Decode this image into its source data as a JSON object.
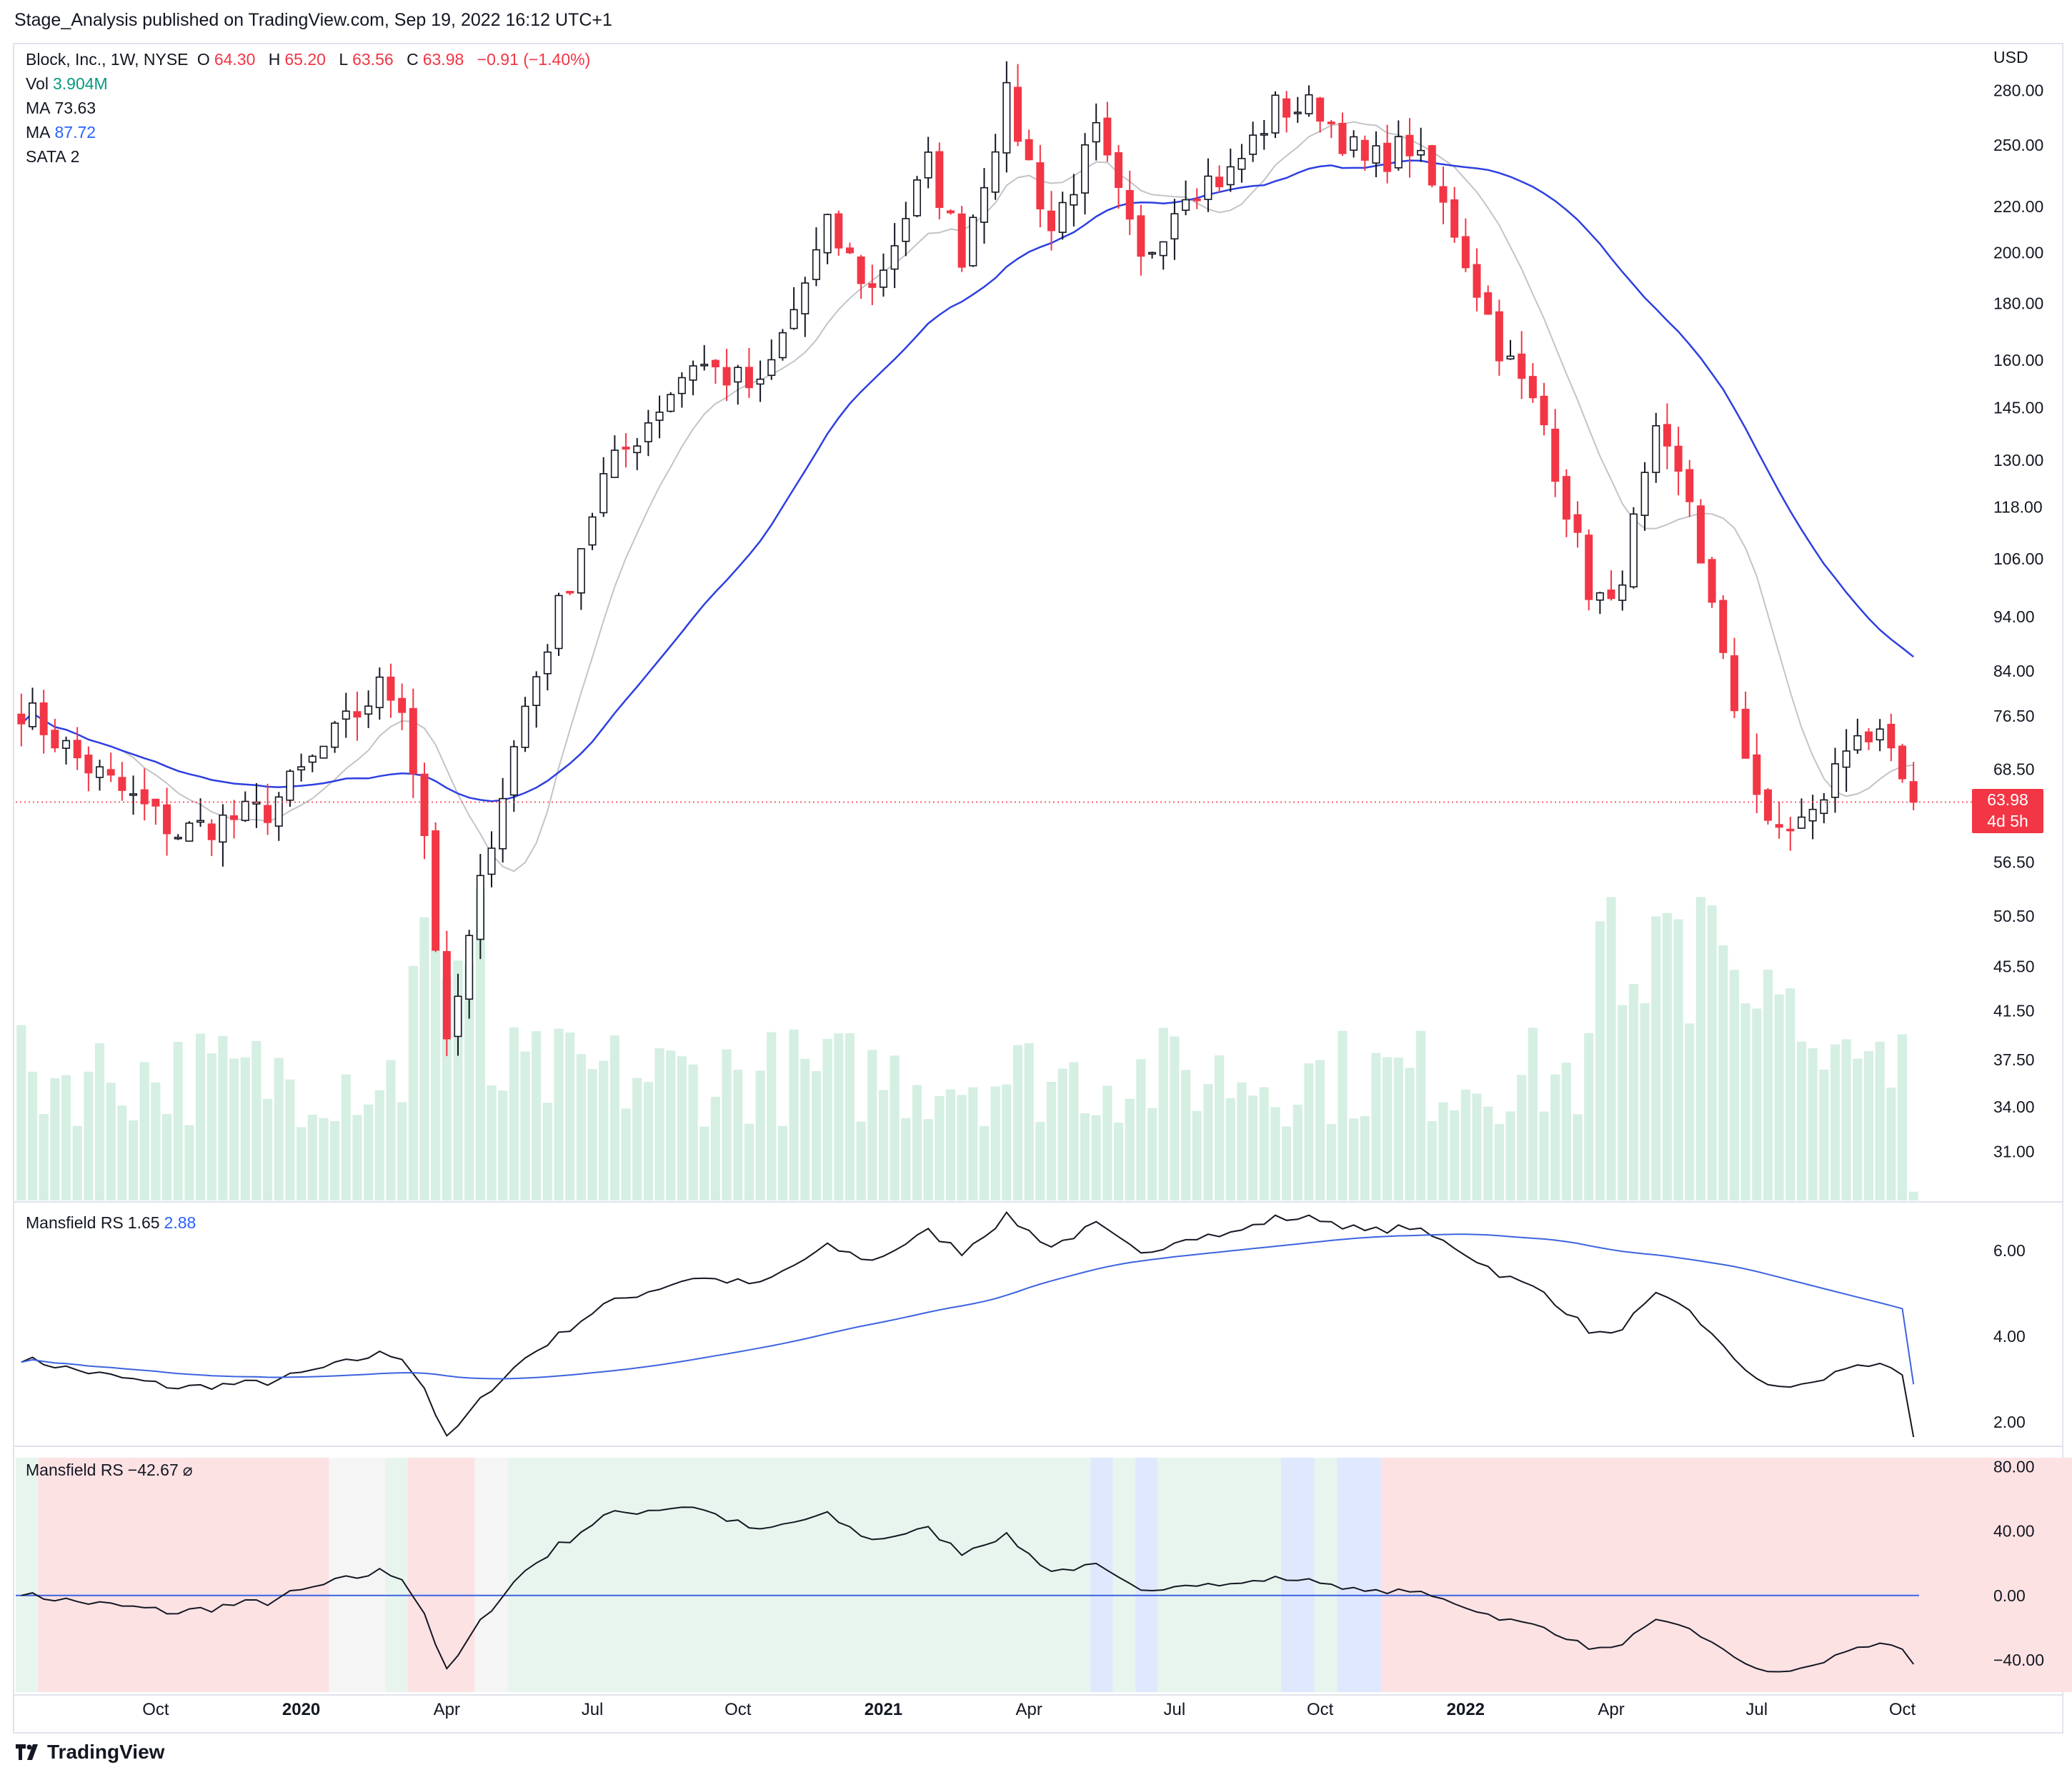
{
  "publisher": "Stage_Analysis published on TradingView.com, Sep 19, 2022 16:12 UTC+1",
  "footer_brand": "TradingView",
  "legend": {
    "symbol": "Block, Inc., 1W, NYSE",
    "o_label": "O",
    "o_value": "64.30",
    "h_label": "H",
    "h_value": "65.20",
    "l_label": "L",
    "l_value": "63.56",
    "c_label": "C",
    "c_value": "63.98",
    "change": "−0.91 (−1.40%)",
    "vol_label": "Vol",
    "vol_value": "3.904M",
    "ma1_label": "MA",
    "ma1_value": "73.63",
    "ma2_label": "MA",
    "ma2_value": "87.72",
    "sata_label": "SATA",
    "sata_value": "2"
  },
  "rs1_legend": {
    "label": "Mansfield RS",
    "v1": "1.65",
    "v2": "2.88"
  },
  "rs2_legend": {
    "label": "Mansfield RS",
    "v1": "−42.67",
    "symbol": "⌀"
  },
  "price_badge": {
    "price": "63.98",
    "countdown": "4d 5h"
  },
  "colors": {
    "up": "#131722",
    "down": "#f23645",
    "volume": "#d5efe3",
    "ma_fast": "#c2c4c9",
    "ma_slow": "#2d3fe0",
    "rs_line": "#131722",
    "rs_ma": "#3c63e0"
  },
  "chart_data": [
    {
      "type": "candlestick",
      "title": "Block, Inc., 1W, NYSE",
      "currency": "USD",
      "scale": "log",
      "ylim": [
        28,
        300
      ],
      "y_ticks": [
        "280.00",
        "250.00",
        "220.00",
        "200.00",
        "180.00",
        "160.00",
        "145.00",
        "130.00",
        "118.00",
        "106.00",
        "94.00",
        "84.00",
        "76.50",
        "68.50",
        "56.50",
        "50.50",
        "45.50",
        "41.50",
        "37.50",
        "34.00",
        "31.00"
      ],
      "x_ticks": [
        "Oct",
        "2020",
        "Apr",
        "Jul",
        "Oct",
        "2021",
        "Apr",
        "Jul",
        "Oct",
        "2022",
        "Apr",
        "Jul",
        "Oct"
      ],
      "x_ticks_bold": [
        "2020",
        "2021",
        "2022"
      ],
      "period": "weekly, Jul 2019 – Sep 2022",
      "anchors": [
        {
          "week": 0,
          "close": 78
        },
        {
          "week": 5,
          "close": 70
        },
        {
          "week": 14,
          "close": 60
        },
        {
          "week": 22,
          "close": 63
        },
        {
          "week": 32,
          "close": 81
        },
        {
          "week": 34,
          "close": 79
        },
        {
          "week": 36,
          "close": 60
        },
        {
          "week": 38,
          "close": 38
        },
        {
          "week": 42,
          "close": 60
        },
        {
          "week": 45,
          "close": 78
        },
        {
          "week": 52,
          "close": 125
        },
        {
          "week": 60,
          "close": 160
        },
        {
          "week": 66,
          "close": 150
        },
        {
          "week": 72,
          "close": 210
        },
        {
          "week": 76,
          "close": 185
        },
        {
          "week": 81,
          "close": 240
        },
        {
          "week": 84,
          "close": 200
        },
        {
          "week": 88,
          "close": 275
        },
        {
          "week": 92,
          "close": 210
        },
        {
          "week": 96,
          "close": 255
        },
        {
          "week": 100,
          "close": 195
        },
        {
          "week": 104,
          "close": 230
        },
        {
          "week": 108,
          "close": 235
        },
        {
          "week": 112,
          "close": 270
        },
        {
          "week": 116,
          "close": 270
        },
        {
          "week": 120,
          "close": 240
        },
        {
          "week": 124,
          "close": 250
        },
        {
          "week": 128,
          "close": 210
        },
        {
          "week": 132,
          "close": 165
        },
        {
          "week": 136,
          "close": 140
        },
        {
          "week": 140,
          "close": 100
        },
        {
          "week": 142,
          "close": 95
        },
        {
          "week": 146,
          "close": 135
        },
        {
          "week": 149,
          "close": 120
        },
        {
          "week": 152,
          "close": 85
        },
        {
          "week": 156,
          "close": 60
        },
        {
          "week": 160,
          "close": 62
        },
        {
          "week": 164,
          "close": 75
        },
        {
          "week": 166,
          "close": 72
        },
        {
          "week": 169,
          "close": 63.98
        }
      ],
      "ma_fast_value": 73.63,
      "ma_slow_value": 87.72,
      "last_close": 63.98
    },
    {
      "type": "line",
      "title": "Mansfield RS",
      "series": [
        {
          "name": "Mansfield RS",
          "last": 1.65
        },
        {
          "name": "",
          "last": 2.88
        }
      ],
      "ylim": [
        1.5,
        7.0
      ],
      "y_ticks": [
        "6.00",
        "4.00",
        "2.00"
      ]
    },
    {
      "type": "line",
      "title": "Mansfield RS",
      "last": -42.67,
      "ylim": [
        -60,
        90
      ],
      "y_ticks": [
        "80.00",
        "40.00",
        "0.00",
        "−40.00"
      ],
      "zero_line": 0,
      "stage_backgrounds": "green / red / white / blue shaded stage zones"
    }
  ]
}
